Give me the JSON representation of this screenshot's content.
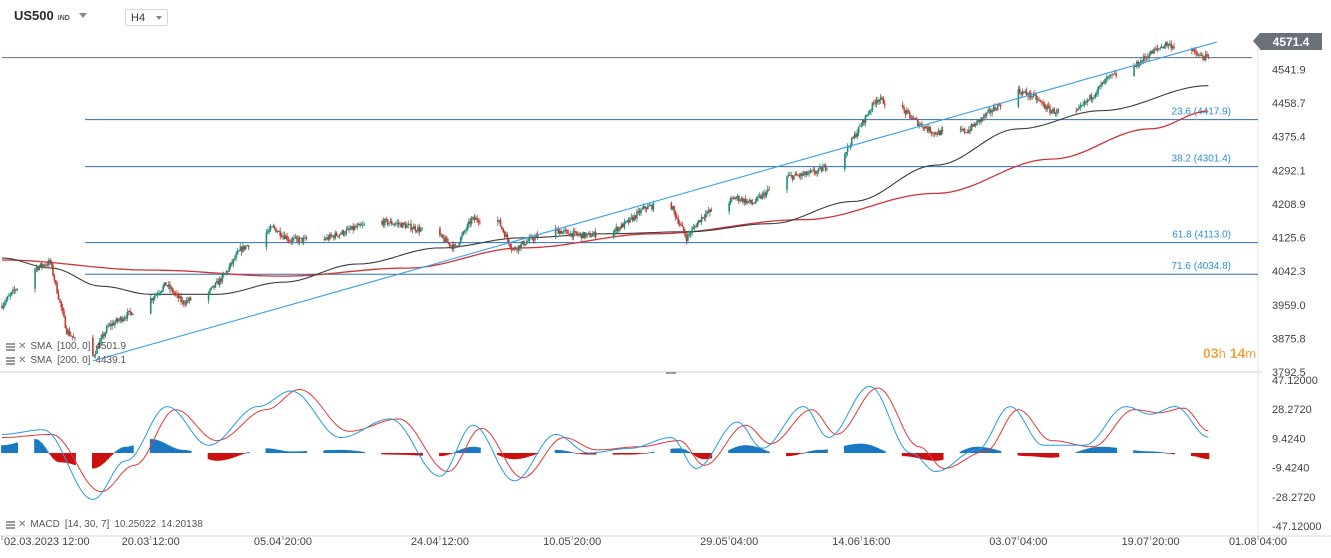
{
  "toolbar": {
    "symbol": "US500",
    "symbol_suffix": "IND",
    "timeframe": "H4"
  },
  "last_price": "4571.4",
  "countdown": {
    "hours": "03",
    "h_unit": "h",
    "minutes": "14",
    "m_unit": "m"
  },
  "legend": {
    "sma100": {
      "label": "SMA",
      "params": "[100, 0]",
      "value": "4501.9"
    },
    "sma200": {
      "label": "SMA",
      "params": "[200, 0]",
      "value": "4439.1"
    },
    "macd": {
      "label": "MACD",
      "params": "[14, 30, 7]",
      "value1": "10.25022",
      "value2": "14.20138"
    }
  },
  "colors": {
    "bull": "#1f8a78",
    "bear": "#c0392b",
    "sma100": "#3c3c3c",
    "sma200": "#d03535",
    "fib_line": "#2e6fb5",
    "fib_label": "#2b8fd6",
    "trendline": "#3aa0e8",
    "macd_hist_pos": "#1a78c2",
    "macd_hist_neg": "#cc1010",
    "macd_line": "#2a9ae0",
    "signal_line": "#e03a3a"
  },
  "chart_data": [
    {
      "type": "candlestick",
      "title": "US500 IND H4",
      "x_ticks": [
        "02.03.2023 12:00",
        "20.03 12:00",
        "05.04 20:00",
        "24.04 12:00",
        "10.05 20:00",
        "29.05 04:00",
        "14.06 16:00",
        "03.07 04:00",
        "19.07 20:00",
        "01.08 04:00"
      ],
      "y_ticks": [
        4541.9,
        4458.7,
        4375.4,
        4292.1,
        4208.9,
        4125.6,
        4042.3,
        3959.0,
        3875.8,
        3792.5
      ],
      "ylim": [
        3792.5,
        4625.0
      ],
      "last_price": 4571.4,
      "fibonacci_levels": [
        {
          "label": "23.6 (4417.9)",
          "value": 4417.9
        },
        {
          "label": "38.2 (4301.4)",
          "value": 4301.4
        },
        {
          "label": "61.8 (4113.0)",
          "value": 4113.0
        },
        {
          "label": "71.6 (4034.8)",
          "value": 4034.8
        }
      ],
      "trendline": {
        "from": {
          "x": "2023-03-13",
          "y": 3820
        },
        "to": {
          "x": "2023-07-27",
          "y": 4610
        }
      },
      "series": [
        {
          "name": "Price",
          "style": "candles",
          "points": [
            [
              "2023-03-02",
              3955
            ],
            [
              "2023-03-06",
              4048
            ],
            [
              "2023-03-08",
              4065
            ],
            [
              "2023-03-10",
              3895
            ],
            [
              "2023-03-13",
              3825
            ],
            [
              "2023-03-15",
              3905
            ],
            [
              "2023-03-17",
              3930
            ],
            [
              "2023-03-20",
              3970
            ],
            [
              "2023-03-22",
              4010
            ],
            [
              "2023-03-24",
              3965
            ],
            [
              "2023-03-27",
              3985
            ],
            [
              "2023-03-29",
              4030
            ],
            [
              "2023-03-31",
              4095
            ],
            [
              "2023-04-04",
              4150
            ],
            [
              "2023-04-06",
              4120
            ],
            [
              "2023-04-10",
              4120
            ],
            [
              "2023-04-12",
              4135
            ],
            [
              "2023-04-14",
              4150
            ],
            [
              "2023-04-17",
              4165
            ],
            [
              "2023-04-19",
              4160
            ],
            [
              "2023-04-21",
              4150
            ],
            [
              "2023-04-24",
              4130
            ],
            [
              "2023-04-26",
              4100
            ],
            [
              "2023-04-28",
              4170
            ],
            [
              "2023-05-01",
              4175
            ],
            [
              "2023-05-03",
              4095
            ],
            [
              "2023-05-05",
              4120
            ],
            [
              "2023-05-08",
              4145
            ],
            [
              "2023-05-10",
              4135
            ],
            [
              "2023-05-12",
              4130
            ],
            [
              "2023-05-15",
              4140
            ],
            [
              "2023-05-17",
              4165
            ],
            [
              "2023-05-19",
              4200
            ],
            [
              "2023-05-22",
              4210
            ],
            [
              "2023-05-24",
              4125
            ],
            [
              "2023-05-26",
              4180
            ],
            [
              "2023-05-30",
              4225
            ],
            [
              "2023-06-01",
              4210
            ],
            [
              "2023-06-05",
              4275
            ],
            [
              "2023-06-07",
              4280
            ],
            [
              "2023-06-09",
              4290
            ],
            [
              "2023-06-12",
              4330
            ],
            [
              "2023-06-14",
              4400
            ],
            [
              "2023-06-16",
              4470
            ],
            [
              "2023-06-19",
              4445
            ],
            [
              "2023-06-21",
              4410
            ],
            [
              "2023-06-23",
              4385
            ],
            [
              "2023-06-27",
              4390
            ],
            [
              "2023-06-29",
              4425
            ],
            [
              "2023-07-03",
              4490
            ],
            [
              "2023-07-05",
              4475
            ],
            [
              "2023-07-07",
              4440
            ],
            [
              "2023-07-10",
              4430
            ],
            [
              "2023-07-12",
              4475
            ],
            [
              "2023-07-14",
              4520
            ],
            [
              "2023-07-17",
              4545
            ],
            [
              "2023-07-19",
              4580
            ],
            [
              "2023-07-21",
              4605
            ],
            [
              "2023-07-24",
              4590
            ],
            [
              "2023-07-25",
              4575
            ],
            [
              "2023-07-26",
              4571.4
            ]
          ]
        },
        {
          "name": "SMA [100, 0]",
          "style": "line",
          "points": [
            [
              "2023-03-02",
              4075
            ],
            [
              "2023-03-08",
              4050
            ],
            [
              "2023-03-14",
              4005
            ],
            [
              "2023-03-20",
              3985
            ],
            [
              "2023-03-28",
              3985
            ],
            [
              "2023-04-05",
              4015
            ],
            [
              "2023-04-14",
              4060
            ],
            [
              "2023-04-24",
              4100
            ],
            [
              "2023-05-04",
              4125
            ],
            [
              "2023-05-14",
              4135
            ],
            [
              "2023-05-24",
              4140
            ],
            [
              "2023-06-03",
              4160
            ],
            [
              "2023-06-13",
              4215
            ],
            [
              "2023-06-23",
              4305
            ],
            [
              "2023-07-03",
              4395
            ],
            [
              "2023-07-13",
              4440
            ],
            [
              "2023-07-26",
              4501.9
            ]
          ]
        },
        {
          "name": "SMA [200, 0]",
          "style": "line",
          "points": [
            [
              "2023-03-02",
              4070
            ],
            [
              "2023-03-20",
              4045
            ],
            [
              "2023-04-05",
              4030
            ],
            [
              "2023-04-20",
              4050
            ],
            [
              "2023-05-04",
              4100
            ],
            [
              "2023-05-20",
              4135
            ],
            [
              "2023-06-07",
              4170
            ],
            [
              "2023-06-23",
              4235
            ],
            [
              "2023-07-07",
              4320
            ],
            [
              "2023-07-19",
              4395
            ],
            [
              "2023-07-26",
              4439.1
            ]
          ]
        }
      ]
    },
    {
      "type": "bar",
      "title": "MACD [14, 30, 7]",
      "y_ticks": [
        47.12,
        28.272,
        9.424,
        -9.424,
        -28.272,
        -47.12
      ],
      "ylim": [
        -47.12,
        47.12
      ],
      "series": [
        {
          "name": "Histogram",
          "points": [
            [
              "2023-03-02",
              5
            ],
            [
              "2023-03-06",
              9
            ],
            [
              "2023-03-09",
              -6
            ],
            [
              "2023-03-13",
              -10
            ],
            [
              "2023-03-17",
              4
            ],
            [
              "2023-03-20",
              9
            ],
            [
              "2023-03-24",
              2
            ],
            [
              "2023-03-28",
              -5
            ],
            [
              "2023-04-03",
              3
            ],
            [
              "2023-04-06",
              1
            ],
            [
              "2023-04-12",
              2
            ],
            [
              "2023-04-18",
              -1
            ],
            [
              "2023-04-24",
              -2
            ],
            [
              "2023-04-28",
              4
            ],
            [
              "2023-05-03",
              -4
            ],
            [
              "2023-05-08",
              2
            ],
            [
              "2023-05-12",
              -1
            ],
            [
              "2023-05-17",
              -1
            ],
            [
              "2023-05-23",
              3
            ],
            [
              "2023-05-26",
              -4
            ],
            [
              "2023-05-31",
              5
            ],
            [
              "2023-06-05",
              -2
            ],
            [
              "2023-06-09",
              2
            ],
            [
              "2023-06-14",
              6
            ],
            [
              "2023-06-19",
              -2
            ],
            [
              "2023-06-23",
              -5
            ],
            [
              "2023-06-28",
              4
            ],
            [
              "2023-07-04",
              -2
            ],
            [
              "2023-07-07",
              -3
            ],
            [
              "2023-07-13",
              4
            ],
            [
              "2023-07-19",
              1
            ],
            [
              "2023-07-24",
              -2
            ],
            [
              "2023-07-26",
              -3.95
            ]
          ]
        },
        {
          "name": "MACD",
          "points": [
            [
              "2023-03-02",
              12
            ],
            [
              "2023-03-07",
              15
            ],
            [
              "2023-03-13",
              -30
            ],
            [
              "2023-03-17",
              -5
            ],
            [
              "2023-03-22",
              30
            ],
            [
              "2023-03-27",
              5
            ],
            [
              "2023-04-02",
              30
            ],
            [
              "2023-04-06",
              40
            ],
            [
              "2023-04-12",
              10
            ],
            [
              "2023-04-18",
              22
            ],
            [
              "2023-04-24",
              -15
            ],
            [
              "2023-04-28",
              18
            ],
            [
              "2023-05-03",
              -18
            ],
            [
              "2023-05-08",
              12
            ],
            [
              "2023-05-12",
              0
            ],
            [
              "2023-05-17",
              3
            ],
            [
              "2023-05-22",
              10
            ],
            [
              "2023-05-25",
              -10
            ],
            [
              "2023-05-30",
              20
            ],
            [
              "2023-06-02",
              3
            ],
            [
              "2023-06-07",
              30
            ],
            [
              "2023-06-10",
              10
            ],
            [
              "2023-06-15",
              43
            ],
            [
              "2023-06-20",
              0
            ],
            [
              "2023-06-23",
              -12
            ],
            [
              "2023-06-28",
              2
            ],
            [
              "2023-07-02",
              30
            ],
            [
              "2023-07-06",
              5
            ],
            [
              "2023-07-11",
              5
            ],
            [
              "2023-07-16",
              30
            ],
            [
              "2023-07-19",
              25
            ],
            [
              "2023-07-22",
              30
            ],
            [
              "2023-07-26",
              10.25022
            ]
          ]
        },
        {
          "name": "Signal",
          "points": [
            [
              "2023-03-02",
              10
            ],
            [
              "2023-03-08",
              12
            ],
            [
              "2023-03-14",
              -25
            ],
            [
              "2023-03-18",
              -8
            ],
            [
              "2023-03-23",
              28
            ],
            [
              "2023-03-28",
              8
            ],
            [
              "2023-04-03",
              28
            ],
            [
              "2023-04-07",
              41
            ],
            [
              "2023-04-13",
              14
            ],
            [
              "2023-04-19",
              22
            ],
            [
              "2023-04-25",
              -12
            ],
            [
              "2023-04-29",
              16
            ],
            [
              "2023-05-04",
              -16
            ],
            [
              "2023-05-09",
              10
            ],
            [
              "2023-05-13",
              2
            ],
            [
              "2023-05-18",
              4
            ],
            [
              "2023-05-23",
              8
            ],
            [
              "2023-05-26",
              -8
            ],
            [
              "2023-05-31",
              18
            ],
            [
              "2023-06-03",
              6
            ],
            [
              "2023-06-08",
              28
            ],
            [
              "2023-06-11",
              12
            ],
            [
              "2023-06-16",
              42
            ],
            [
              "2023-06-21",
              4
            ],
            [
              "2023-06-24",
              -10
            ],
            [
              "2023-06-29",
              1
            ],
            [
              "2023-07-03",
              28
            ],
            [
              "2023-07-07",
              8
            ],
            [
              "2023-07-12",
              4
            ],
            [
              "2023-07-17",
              28
            ],
            [
              "2023-07-20",
              26
            ],
            [
              "2023-07-23",
              29
            ],
            [
              "2023-07-26",
              14.20138
            ]
          ]
        }
      ]
    }
  ]
}
